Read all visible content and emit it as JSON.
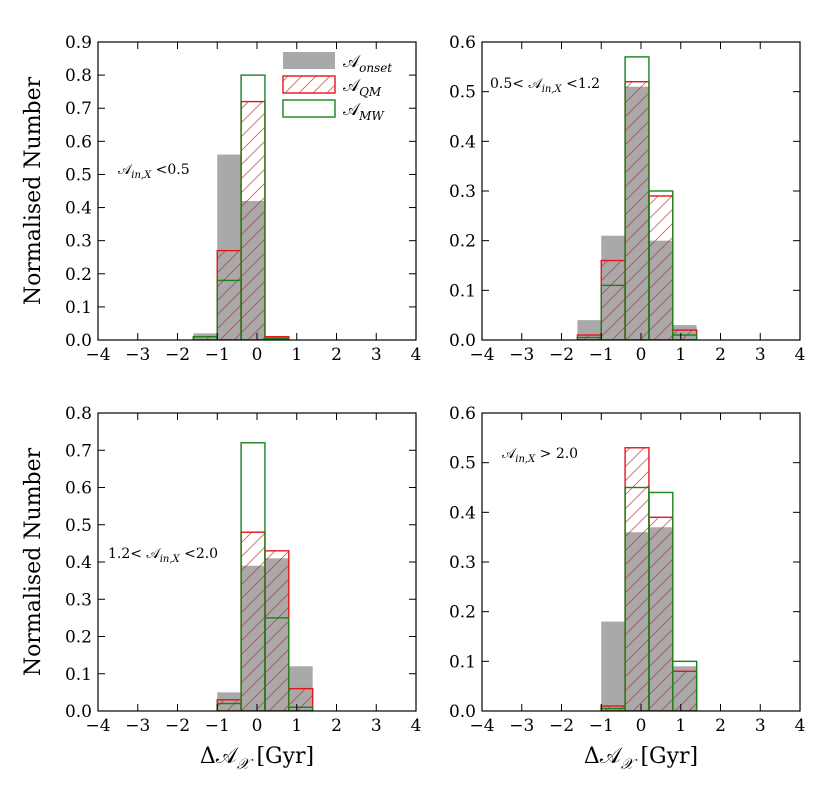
{
  "chart_data": [
    {
      "type": "bar",
      "panel": "top-left",
      "xlim": [
        -4,
        4
      ],
      "ylim": [
        0,
        0.9
      ],
      "xticks": [
        "−4",
        "−3",
        "−2",
        "−1",
        "0",
        "1",
        "2",
        "3",
        "4"
      ],
      "yticks": [
        "0.0",
        "0.1",
        "0.2",
        "0.3",
        "0.4",
        "0.5",
        "0.6",
        "0.7",
        "0.8",
        "0.9"
      ],
      "ylabel": "Normalised Number",
      "xlabel": "",
      "annotation": "𝒜_{in,X} <0.5",
      "legend_location": "top-right",
      "bin_edges": [
        -1.6,
        -1.0,
        -0.4,
        0.2,
        0.8
      ],
      "series": [
        {
          "name": "𝒜_onset",
          "style": "gray-filled",
          "values": [
            0.02,
            0.56,
            0.42,
            0.01
          ]
        },
        {
          "name": "𝒜_QM",
          "style": "red-hatched",
          "values": [
            0.01,
            0.27,
            0.72,
            0.01
          ]
        },
        {
          "name": "𝒜_MW",
          "style": "green-outline",
          "values": [
            0.01,
            0.18,
            0.8,
            0.005
          ]
        }
      ]
    },
    {
      "type": "bar",
      "panel": "top-right",
      "xlim": [
        -4,
        4
      ],
      "ylim": [
        0,
        0.6
      ],
      "xticks": [
        "−4",
        "−3",
        "−2",
        "−1",
        "0",
        "1",
        "2",
        "3",
        "4"
      ],
      "yticks": [
        "0.0",
        "0.1",
        "0.2",
        "0.3",
        "0.4",
        "0.5",
        "0.6"
      ],
      "ylabel": "",
      "xlabel": "",
      "annotation": "0.5< 𝒜_{in,X} <1.2",
      "bin_edges": [
        -1.6,
        -1.0,
        -0.4,
        0.2,
        0.8,
        1.4
      ],
      "series": [
        {
          "name": "𝒜_onset",
          "style": "gray-filled",
          "values": [
            0.04,
            0.21,
            0.51,
            0.2,
            0.03
          ]
        },
        {
          "name": "𝒜_QM",
          "style": "red-hatched",
          "values": [
            0.01,
            0.16,
            0.52,
            0.29,
            0.02
          ]
        },
        {
          "name": "𝒜_MW",
          "style": "green-outline",
          "values": [
            0.005,
            0.11,
            0.57,
            0.3,
            0.01
          ]
        }
      ]
    },
    {
      "type": "bar",
      "panel": "bottom-left",
      "xlim": [
        -4,
        4
      ],
      "ylim": [
        0,
        0.8
      ],
      "xticks": [
        "−4",
        "−3",
        "−2",
        "−1",
        "0",
        "1",
        "2",
        "3",
        "4"
      ],
      "yticks": [
        "0.0",
        "0.1",
        "0.2",
        "0.3",
        "0.4",
        "0.5",
        "0.6",
        "0.7",
        "0.8"
      ],
      "ylabel": "Normalised Number",
      "xlabel": "Δ𝒜_𝒳 [Gyr]",
      "annotation": "1.2< 𝒜_{in,X} <2.0",
      "bin_edges": [
        -1.0,
        -0.4,
        0.2,
        0.8,
        1.4
      ],
      "series": [
        {
          "name": "𝒜_onset",
          "style": "gray-filled",
          "values": [
            0.05,
            0.39,
            0.41,
            0.12
          ]
        },
        {
          "name": "𝒜_QM",
          "style": "red-hatched",
          "values": [
            0.03,
            0.48,
            0.43,
            0.06
          ]
        },
        {
          "name": "𝒜_MW",
          "style": "green-outline",
          "values": [
            0.02,
            0.72,
            0.25,
            0.01
          ]
        }
      ]
    },
    {
      "type": "bar",
      "panel": "bottom-right",
      "xlim": [
        -4,
        4
      ],
      "ylim": [
        0,
        0.6
      ],
      "xticks": [
        "−4",
        "−3",
        "−2",
        "−1",
        "0",
        "1",
        "2",
        "3",
        "4"
      ],
      "yticks": [
        "0.0",
        "0.1",
        "0.2",
        "0.3",
        "0.4",
        "0.5",
        "0.6"
      ],
      "ylabel": "",
      "xlabel": "Δ𝒜_𝒳 [Gyr]",
      "annotation": "𝒜_{in,X} > 2.0",
      "bin_edges": [
        -1.0,
        -0.4,
        0.2,
        0.8,
        1.4
      ],
      "series": [
        {
          "name": "𝒜_onset",
          "style": "gray-filled",
          "values": [
            0.18,
            0.36,
            0.37,
            0.09
          ]
        },
        {
          "name": "𝒜_QM",
          "style": "red-hatched",
          "values": [
            0.01,
            0.53,
            0.39,
            0.08
          ]
        },
        {
          "name": "𝒜_MW",
          "style": "green-outline",
          "values": [
            0.005,
            0.45,
            0.44,
            0.1
          ]
        }
      ]
    }
  ],
  "colors": {
    "onset_fill": "#a9a9a9",
    "qm_edge": "#e8141b",
    "mw_edge": "#19821b",
    "axis": "#000000"
  }
}
